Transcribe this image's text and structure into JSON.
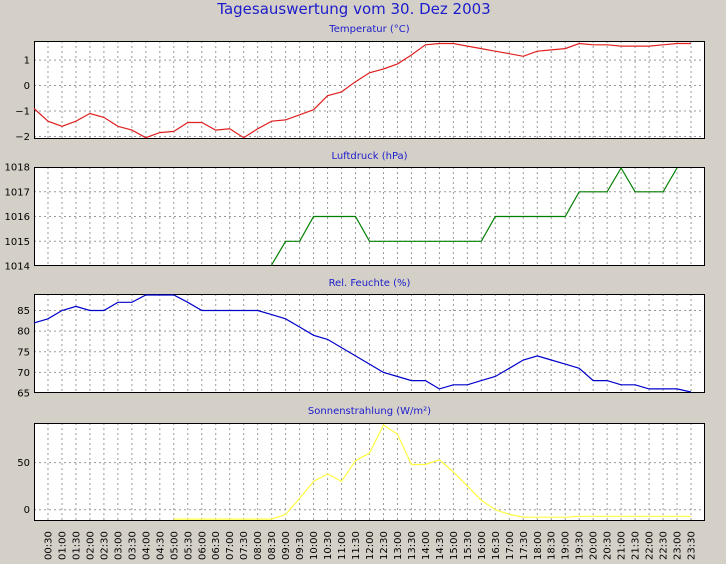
{
  "title": "Tagesauswertung vom 30. Dez 2003",
  "colors": {
    "background": "#d4d0c8",
    "plot_background": "#ffffff",
    "grid": "#999999",
    "title": "#1c1ccc"
  },
  "chart_data": [
    {
      "type": "line",
      "title": "Temperatur (°C)",
      "color": "#e02020",
      "ylim": [
        -2.1,
        1.75
      ],
      "yticks": [
        1,
        0,
        -1,
        -2
      ],
      "ytick_labels": [
        "1",
        "0",
        "−1",
        "−2"
      ],
      "x": [
        "00:00",
        "00:30",
        "01:00",
        "01:30",
        "02:00",
        "02:30",
        "03:00",
        "03:30",
        "04:00",
        "04:30",
        "05:00",
        "05:30",
        "06:00",
        "06:30",
        "07:00",
        "07:30",
        "08:00",
        "08:30",
        "09:00",
        "09:30",
        "10:00",
        "10:30",
        "11:00",
        "11:30",
        "12:00",
        "12:30",
        "13:00",
        "13:30",
        "14:00",
        "14:30",
        "15:00",
        "15:30",
        "16:00",
        "16:30",
        "17:00",
        "17:30",
        "18:00",
        "18:30",
        "19:00",
        "19:30",
        "20:00",
        "20:30",
        "21:00",
        "21:30",
        "22:00",
        "22:30",
        "23:00",
        "23:30"
      ],
      "values": [
        -0.9,
        -1.4,
        -1.6,
        -1.4,
        -1.1,
        -1.25,
        -1.6,
        -1.75,
        -2.05,
        -1.85,
        -1.8,
        -1.45,
        -1.45,
        -1.75,
        -1.7,
        -2.05,
        -1.7,
        -1.4,
        -1.35,
        -1.15,
        -0.95,
        -0.4,
        -0.25,
        0.15,
        0.5,
        0.65,
        0.85,
        1.2,
        1.6,
        1.65,
        1.65,
        1.55,
        1.45,
        1.35,
        1.25,
        1.15,
        1.35,
        1.4,
        1.45,
        1.65,
        1.6,
        1.6,
        1.55,
        1.55,
        1.55,
        1.6,
        1.65,
        1.65
      ]
    },
    {
      "type": "line",
      "title": "Luftdruck (hPa)",
      "color": "#008000",
      "ylim": [
        1014,
        1018
      ],
      "yticks": [
        1018,
        1017,
        1016,
        1015,
        1014
      ],
      "ytick_labels": [
        "1018",
        "1017",
        "1016",
        "1015",
        "1014"
      ],
      "x": [
        "08:30",
        "09:00",
        "09:30",
        "10:00",
        "10:30",
        "11:00",
        "11:30",
        "12:00",
        "12:30",
        "13:00",
        "13:30",
        "14:00",
        "14:30",
        "15:00",
        "15:30",
        "16:00",
        "16:30",
        "17:00",
        "17:30",
        "18:00",
        "18:30",
        "19:00",
        "19:30",
        "20:00",
        "20:30",
        "21:00",
        "21:30",
        "22:00",
        "22:30",
        "23:00"
      ],
      "values": [
        1014,
        1015,
        1015,
        1016,
        1016,
        1016,
        1016,
        1015,
        1015,
        1015,
        1015,
        1015,
        1015,
        1015,
        1015,
        1015,
        1016,
        1016,
        1016,
        1016,
        1016,
        1016,
        1017,
        1017,
        1017,
        1018,
        1017,
        1017,
        1017,
        1018
      ]
    },
    {
      "type": "line",
      "title": "Rel. Feuchte (%)",
      "color": "#0000cc",
      "ylim": [
        65,
        89
      ],
      "yticks": [
        85,
        80,
        75,
        70,
        65
      ],
      "ytick_labels": [
        "85",
        "80",
        "75",
        "70",
        "65"
      ],
      "x": [
        "00:00",
        "00:30",
        "01:00",
        "01:30",
        "02:00",
        "02:30",
        "03:00",
        "03:30",
        "04:00",
        "04:30",
        "05:00",
        "05:30",
        "06:00",
        "06:30",
        "07:00",
        "07:30",
        "08:00",
        "08:30",
        "09:00",
        "09:30",
        "10:00",
        "10:30",
        "11:00",
        "11:30",
        "12:00",
        "12:30",
        "13:00",
        "13:30",
        "14:00",
        "14:30",
        "15:00",
        "15:30",
        "16:00",
        "16:30",
        "17:00",
        "17:30",
        "18:00",
        "18:30",
        "19:00",
        "19:30",
        "20:00",
        "20:30",
        "21:00",
        "21:30",
        "22:00",
        "22:30",
        "23:00",
        "23:30"
      ],
      "values": [
        82,
        83,
        85,
        86,
        85,
        85,
        87,
        87,
        89,
        89,
        89,
        87,
        85,
        85,
        85,
        85,
        85,
        84,
        83,
        81,
        79,
        78,
        76,
        74,
        72,
        70,
        69,
        68,
        68,
        66,
        67,
        67,
        68,
        69,
        71,
        73,
        74,
        73,
        72,
        71,
        68,
        68,
        67,
        67,
        66,
        66,
        66,
        65
      ]
    },
    {
      "type": "line",
      "title": "Sonnenstrahlung (W/m²)",
      "color": "#ffff40",
      "ylim": [
        -12,
        92
      ],
      "yticks": [
        50,
        0
      ],
      "ytick_labels": [
        "50",
        "0"
      ],
      "x": [
        "05:00",
        "05:30",
        "06:00",
        "06:30",
        "07:00",
        "07:30",
        "08:00",
        "08:30",
        "09:00",
        "09:30",
        "10:00",
        "10:30",
        "11:00",
        "11:30",
        "12:00",
        "12:30",
        "13:00",
        "13:30",
        "14:00",
        "14:30",
        "15:00",
        "15:30",
        "16:00",
        "16:30",
        "17:00",
        "17:30",
        "18:00",
        "18:30",
        "19:00",
        "19:30",
        "20:00",
        "20:30",
        "21:00",
        "21:30",
        "22:00",
        "22:30",
        "23:00",
        "23:30"
      ],
      "values": [
        -10,
        -10,
        -10,
        -10,
        -10,
        -10,
        -10,
        -10,
        -5,
        12,
        30,
        38,
        30,
        52,
        60,
        90,
        80,
        48,
        48,
        53,
        40,
        25,
        10,
        0,
        -5,
        -8,
        -8,
        -8,
        -8,
        -7,
        -7,
        -7,
        -7,
        -7,
        -7,
        -7,
        -7,
        -7
      ]
    }
  ],
  "x_axis": {
    "tick_labels": [
      "00:30",
      "01:00",
      "01:30",
      "02:00",
      "02:30",
      "03:00",
      "03:30",
      "04:00",
      "04:30",
      "05:00",
      "05:30",
      "06:00",
      "06:30",
      "07:00",
      "07:30",
      "08:00",
      "08:30",
      "09:00",
      "09:30",
      "10:00",
      "10:30",
      "11:00",
      "11:30",
      "12:00",
      "12:30",
      "13:00",
      "13:30",
      "14:00",
      "14:30",
      "15:00",
      "15:30",
      "16:00",
      "16:30",
      "17:00",
      "17:30",
      "18:00",
      "18:30",
      "19:00",
      "19:30",
      "20:00",
      "20:30",
      "21:00",
      "21:30",
      "22:00",
      "22:30",
      "23:00",
      "23:30"
    ]
  }
}
